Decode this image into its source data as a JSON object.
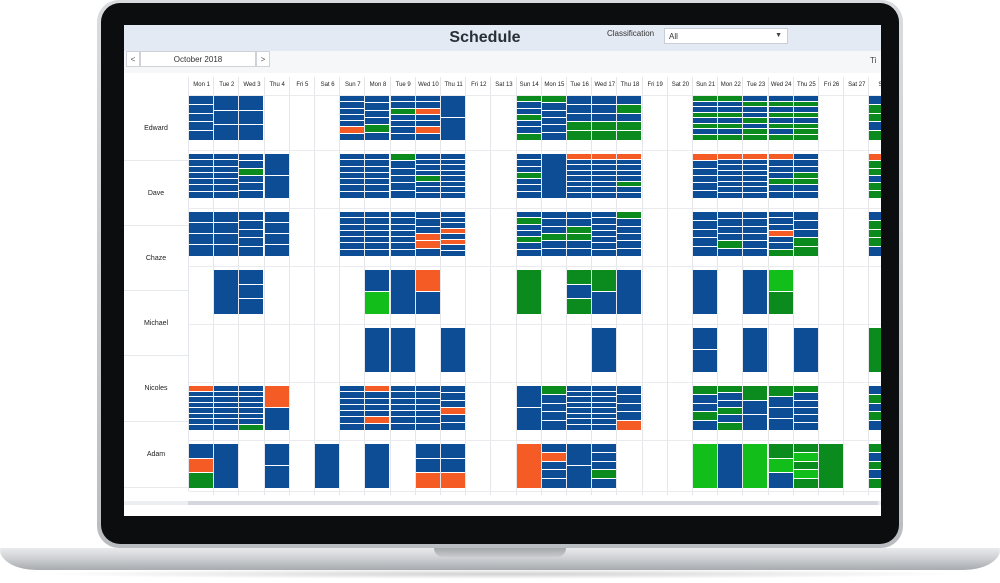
{
  "app": {
    "title": "Schedule"
  },
  "filter": {
    "label": "Classification",
    "value": "All"
  },
  "nav": {
    "prev": "<",
    "next": ">",
    "month": "October 2018",
    "cut_label": "Ti"
  },
  "colors": {
    "blue": "#0d4d95",
    "green": "#0b8a1e",
    "lime": "#12bf1a",
    "orange": "#f55b25",
    "grid": "#e4e6ea"
  },
  "days": [
    "Mon 1",
    "Tue 2",
    "Wed 3",
    "Thu 4",
    "Fri 5",
    "Sat 6",
    "Sun 7",
    "Mon 8",
    "Tue 9",
    "Wed 10",
    "Thu 11",
    "Fri 12",
    "Sat 13",
    "Sun 14",
    "Mon 15",
    "Tue 16",
    "Wed 17",
    "Thu 18",
    "Fri 19",
    "Sat 20",
    "Sun 21",
    "Mon 22",
    "Tue 23",
    "Wed 24",
    "Thu 25",
    "Fri 26",
    "Sat 27",
    "Su"
  ],
  "people": [
    "Edward",
    "Dave",
    "Chaze",
    "Michael",
    "Nicoles",
    "Adam"
  ],
  "blocks": [
    {
      "r": 0,
      "d": 0,
      "s": [
        "b",
        "b",
        "b",
        "b",
        "b"
      ]
    },
    {
      "r": 0,
      "d": 1,
      "s": [
        "b",
        "b",
        "b"
      ]
    },
    {
      "r": 0,
      "d": 2,
      "s": [
        "b",
        "b",
        "b"
      ]
    },
    {
      "r": 0,
      "d": 6,
      "s": [
        "b",
        "b",
        "b",
        "b",
        "b",
        "o",
        "b"
      ]
    },
    {
      "r": 0,
      "d": 7,
      "s": [
        "b",
        "b",
        "b",
        "b",
        "g",
        "b"
      ]
    },
    {
      "r": 0,
      "d": 8,
      "s": [
        "b",
        "b",
        "g",
        "b",
        "b",
        "b",
        "b"
      ]
    },
    {
      "r": 0,
      "d": 9,
      "s": [
        "b",
        "b",
        "o",
        "b",
        "b",
        "o",
        "b"
      ]
    },
    {
      "r": 0,
      "d": 10,
      "s": [
        "b",
        "b"
      ]
    },
    {
      "r": 0,
      "d": 13,
      "s": [
        "g",
        "b",
        "b",
        "g",
        "b",
        "b",
        "g"
      ]
    },
    {
      "r": 0,
      "d": 14,
      "s": [
        "g",
        "b",
        "b",
        "b",
        "b",
        "b"
      ]
    },
    {
      "r": 0,
      "d": 15,
      "s": [
        "b",
        "b",
        "b",
        "g",
        "g"
      ]
    },
    {
      "r": 0,
      "d": 16,
      "s": [
        "b",
        "b",
        "b",
        "g",
        "g"
      ]
    },
    {
      "r": 0,
      "d": 17,
      "s": [
        "b",
        "g",
        "b",
        "g",
        "g"
      ]
    },
    {
      "r": 0,
      "d": 20,
      "s": [
        "g",
        "b",
        "b",
        "g",
        "b",
        "g",
        "b",
        "g"
      ]
    },
    {
      "r": 0,
      "d": 21,
      "s": [
        "g",
        "b",
        "b",
        "g",
        "b",
        "g",
        "b",
        "g"
      ]
    },
    {
      "r": 0,
      "d": 22,
      "s": [
        "b",
        "g",
        "b",
        "b",
        "g",
        "b",
        "g",
        "g"
      ]
    },
    {
      "r": 0,
      "d": 23,
      "s": [
        "b",
        "g",
        "b",
        "g",
        "b",
        "g",
        "b",
        "g"
      ]
    },
    {
      "r": 0,
      "d": 24,
      "s": [
        "b",
        "g",
        "b",
        "g",
        "b",
        "g",
        "g",
        "g"
      ]
    },
    {
      "r": 0,
      "d": 27,
      "s": [
        "b",
        "g",
        "g",
        "b",
        "g"
      ]
    },
    {
      "r": 1,
      "d": 0,
      "s": [
        "b",
        "b",
        "b",
        "b",
        "b",
        "b",
        "b"
      ]
    },
    {
      "r": 1,
      "d": 1,
      "s": [
        "b",
        "b",
        "b",
        "b",
        "b",
        "b",
        "b"
      ]
    },
    {
      "r": 1,
      "d": 2,
      "s": [
        "b",
        "b",
        "g",
        "b",
        "b",
        "b"
      ]
    },
    {
      "r": 1,
      "d": 3,
      "s": [
        "b",
        "b"
      ]
    },
    {
      "r": 1,
      "d": 6,
      "s": [
        "b",
        "b",
        "b",
        "b",
        "b",
        "b",
        "b"
      ]
    },
    {
      "r": 1,
      "d": 7,
      "s": [
        "b",
        "b",
        "b",
        "b",
        "b",
        "b",
        "b"
      ]
    },
    {
      "r": 1,
      "d": 8,
      "s": [
        "g",
        "b",
        "b",
        "b",
        "b",
        "b"
      ]
    },
    {
      "r": 1,
      "d": 9,
      "s": [
        "b",
        "b",
        "b",
        "b",
        "g",
        "b",
        "b",
        "b"
      ]
    },
    {
      "r": 1,
      "d": 10,
      "s": [
        "b",
        "b",
        "b",
        "b",
        "b",
        "b",
        "b",
        "b"
      ]
    },
    {
      "r": 1,
      "d": 13,
      "s": [
        "b",
        "b",
        "b",
        "g",
        "b",
        "b",
        "b"
      ]
    },
    {
      "r": 1,
      "d": 14,
      "s": [
        "b"
      ]
    },
    {
      "r": 1,
      "d": 15,
      "s": [
        "o",
        "b",
        "b",
        "b",
        "b",
        "b",
        "b",
        "b"
      ]
    },
    {
      "r": 1,
      "d": 16,
      "s": [
        "o",
        "b",
        "b",
        "b",
        "b",
        "b",
        "b",
        "b"
      ]
    },
    {
      "r": 1,
      "d": 17,
      "s": [
        "o",
        "b",
        "b",
        "b",
        "b",
        "g",
        "b",
        "b"
      ]
    },
    {
      "r": 1,
      "d": 20,
      "s": [
        "o",
        "b",
        "b",
        "b",
        "b",
        "b"
      ]
    },
    {
      "r": 1,
      "d": 21,
      "s": [
        "o",
        "b",
        "b",
        "b",
        "b",
        "b",
        "b",
        "b"
      ]
    },
    {
      "r": 1,
      "d": 22,
      "s": [
        "o",
        "b",
        "b",
        "b",
        "b",
        "b",
        "b",
        "b"
      ]
    },
    {
      "r": 1,
      "d": 23,
      "s": [
        "o",
        "b",
        "b",
        "b",
        "g",
        "b",
        "b"
      ]
    },
    {
      "r": 1,
      "d": 24,
      "s": [
        "b",
        "b",
        "b",
        "g",
        "g",
        "b",
        "b"
      ]
    },
    {
      "r": 1,
      "d": 27,
      "s": [
        "o",
        "g",
        "g",
        "b",
        "g",
        "g"
      ]
    },
    {
      "r": 2,
      "d": 0,
      "s": [
        "b",
        "b",
        "b",
        "b"
      ]
    },
    {
      "r": 2,
      "d": 1,
      "s": [
        "b",
        "b",
        "b",
        "b"
      ]
    },
    {
      "r": 2,
      "d": 2,
      "s": [
        "b",
        "b",
        "b",
        "b",
        "b"
      ]
    },
    {
      "r": 2,
      "d": 3,
      "s": [
        "b",
        "b",
        "b",
        "b"
      ]
    },
    {
      "r": 2,
      "d": 6,
      "s": [
        "b",
        "b",
        "b",
        "b",
        "b",
        "b",
        "b"
      ]
    },
    {
      "r": 2,
      "d": 7,
      "s": [
        "b",
        "b",
        "b",
        "b",
        "b",
        "b",
        "b"
      ]
    },
    {
      "r": 2,
      "d": 8,
      "s": [
        "b",
        "b",
        "b",
        "b",
        "b",
        "b",
        "b"
      ]
    },
    {
      "r": 2,
      "d": 9,
      "s": [
        "b",
        "b",
        "b",
        "o",
        "o",
        "b"
      ]
    },
    {
      "r": 2,
      "d": 10,
      "s": [
        "b",
        "b",
        "b",
        "o",
        "b",
        "o",
        "b",
        "b"
      ]
    },
    {
      "r": 2,
      "d": 13,
      "s": [
        "b",
        "g",
        "b",
        "b",
        "g",
        "b",
        "b"
      ]
    },
    {
      "r": 2,
      "d": 14,
      "s": [
        "b",
        "b",
        "b",
        "g",
        "b",
        "b"
      ]
    },
    {
      "r": 2,
      "d": 15,
      "s": [
        "b",
        "b",
        "g",
        "g",
        "b",
        "b"
      ]
    },
    {
      "r": 2,
      "d": 16,
      "s": [
        "b",
        "b",
        "b",
        "b",
        "b",
        "b",
        "b"
      ]
    },
    {
      "r": 2,
      "d": 17,
      "s": [
        "g",
        "b",
        "b",
        "b",
        "b",
        "b"
      ]
    },
    {
      "r": 2,
      "d": 20,
      "s": [
        "b",
        "b",
        "b",
        "b",
        "b"
      ]
    },
    {
      "r": 2,
      "d": 21,
      "s": [
        "b",
        "b",
        "b",
        "b",
        "g",
        "b"
      ]
    },
    {
      "r": 2,
      "d": 22,
      "s": [
        "b",
        "b",
        "b",
        "b",
        "b",
        "b"
      ]
    },
    {
      "r": 2,
      "d": 23,
      "s": [
        "b",
        "b",
        "b",
        "o",
        "b",
        "b",
        "g"
      ]
    },
    {
      "r": 2,
      "d": 24,
      "s": [
        "b",
        "b",
        "b",
        "g",
        "g"
      ]
    },
    {
      "r": 2,
      "d": 27,
      "s": [
        "b",
        "g",
        "g",
        "g",
        "b"
      ]
    },
    {
      "r": 3,
      "d": 1,
      "s": [
        "b"
      ]
    },
    {
      "r": 3,
      "d": 2,
      "s": [
        "b",
        "b",
        "b"
      ]
    },
    {
      "r": 3,
      "d": 7,
      "s": [
        "b",
        "l"
      ]
    },
    {
      "r": 3,
      "d": 8,
      "s": [
        "b"
      ]
    },
    {
      "r": 3,
      "d": 9,
      "s": [
        "o",
        "b"
      ]
    },
    {
      "r": 3,
      "d": 13,
      "s": [
        "g"
      ]
    },
    {
      "r": 3,
      "d": 15,
      "s": [
        "g",
        "b",
        "g"
      ]
    },
    {
      "r": 3,
      "d": 16,
      "s": [
        "g",
        "b"
      ]
    },
    {
      "r": 3,
      "d": 17,
      "s": [
        "b"
      ]
    },
    {
      "r": 3,
      "d": 20,
      "s": [
        "b"
      ]
    },
    {
      "r": 3,
      "d": 22,
      "s": [
        "b"
      ]
    },
    {
      "r": 3,
      "d": 23,
      "s": [
        "l",
        "g"
      ]
    },
    {
      "r": 4,
      "d": 7,
      "s": [
        "b"
      ]
    },
    {
      "r": 4,
      "d": 8,
      "s": [
        "b"
      ]
    },
    {
      "r": 4,
      "d": 10,
      "s": [
        "b"
      ]
    },
    {
      "r": 4,
      "d": 16,
      "s": [
        "b"
      ]
    },
    {
      "r": 4,
      "d": 20,
      "s": [
        "b",
        "b"
      ]
    },
    {
      "r": 4,
      "d": 22,
      "s": [
        "b"
      ]
    },
    {
      "r": 4,
      "d": 24,
      "s": [
        "b"
      ]
    },
    {
      "r": 4,
      "d": 27,
      "s": [
        "g"
      ]
    },
    {
      "r": 5,
      "d": 0,
      "s": [
        "o",
        "b",
        "b",
        "b",
        "b",
        "b",
        "b",
        "b"
      ]
    },
    {
      "r": 5,
      "d": 1,
      "s": [
        "b",
        "b",
        "b",
        "b",
        "b",
        "b",
        "b",
        "b"
      ]
    },
    {
      "r": 5,
      "d": 2,
      "s": [
        "b",
        "b",
        "b",
        "b",
        "b",
        "b",
        "b",
        "g"
      ]
    },
    {
      "r": 5,
      "d": 3,
      "s": [
        "o",
        "b"
      ]
    },
    {
      "r": 5,
      "d": 6,
      "s": [
        "b",
        "b",
        "b",
        "b",
        "b",
        "b",
        "b"
      ]
    },
    {
      "r": 5,
      "d": 7,
      "s": [
        "o",
        "b",
        "b",
        "b",
        "b",
        "o",
        "b"
      ]
    },
    {
      "r": 5,
      "d": 8,
      "s": [
        "b",
        "b",
        "b",
        "b",
        "b",
        "b",
        "b"
      ]
    },
    {
      "r": 5,
      "d": 9,
      "s": [
        "b",
        "b",
        "b",
        "b",
        "b",
        "b",
        "b"
      ]
    },
    {
      "r": 5,
      "d": 10,
      "s": [
        "b",
        "b",
        "b",
        "o",
        "b",
        "b"
      ]
    },
    {
      "r": 5,
      "d": 13,
      "s": [
        "b",
        "b"
      ]
    },
    {
      "r": 5,
      "d": 14,
      "s": [
        "g",
        "b",
        "b",
        "b",
        "b"
      ]
    },
    {
      "r": 5,
      "d": 15,
      "s": [
        "b",
        "b",
        "b",
        "b",
        "b",
        "b",
        "b",
        "b"
      ]
    },
    {
      "r": 5,
      "d": 16,
      "s": [
        "b",
        "b",
        "b",
        "b",
        "b",
        "b",
        "b",
        "b"
      ]
    },
    {
      "r": 5,
      "d": 17,
      "s": [
        "b",
        "b",
        "b",
        "b",
        "o"
      ]
    },
    {
      "r": 5,
      "d": 20,
      "s": [
        "g",
        "b",
        "b",
        "g",
        "b"
      ]
    },
    {
      "r": 5,
      "d": 21,
      "s": [
        "g",
        "b",
        "b",
        "g",
        "b",
        "g"
      ]
    },
    {
      "r": 5,
      "d": 22,
      "s": [
        "g",
        "b",
        "b"
      ]
    },
    {
      "r": 5,
      "d": 23,
      "s": [
        "g",
        "b",
        "b",
        "b"
      ]
    },
    {
      "r": 5,
      "d": 24,
      "s": [
        "g",
        "b",
        "b",
        "b",
        "b",
        "b"
      ]
    },
    {
      "r": 5,
      "d": 27,
      "s": [
        "b",
        "g",
        "b",
        "g",
        "b"
      ]
    },
    {
      "r": 6,
      "d": 0,
      "s": [
        "b",
        "o",
        "g"
      ]
    },
    {
      "r": 6,
      "d": 1,
      "s": [
        "b"
      ]
    },
    {
      "r": 6,
      "d": 3,
      "s": [
        "b",
        "b"
      ]
    },
    {
      "r": 6,
      "d": 5,
      "s": [
        "b"
      ]
    },
    {
      "r": 6,
      "d": 7,
      "s": [
        "b"
      ]
    },
    {
      "r": 6,
      "d": 9,
      "s": [
        "b",
        "b",
        "o"
      ]
    },
    {
      "r": 6,
      "d": 10,
      "s": [
        "b",
        "b",
        "o"
      ]
    },
    {
      "r": 6,
      "d": 13,
      "s": [
        "o"
      ]
    },
    {
      "r": 6,
      "d": 14,
      "s": [
        "b",
        "o",
        "b",
        "b",
        "b"
      ]
    },
    {
      "r": 6,
      "d": 15,
      "s": [
        "b",
        "b"
      ]
    },
    {
      "r": 6,
      "d": 16,
      "s": [
        "b",
        "b",
        "b",
        "g",
        "b"
      ]
    },
    {
      "r": 6,
      "d": 20,
      "s": [
        "l"
      ]
    },
    {
      "r": 6,
      "d": 21,
      "s": [
        "b"
      ]
    },
    {
      "r": 6,
      "d": 22,
      "s": [
        "l"
      ]
    },
    {
      "r": 6,
      "d": 23,
      "s": [
        "g",
        "l",
        "b"
      ]
    },
    {
      "r": 6,
      "d": 24,
      "s": [
        "g",
        "l",
        "g",
        "l",
        "g"
      ]
    },
    {
      "r": 6,
      "d": 25,
      "s": [
        "g"
      ]
    },
    {
      "r": 6,
      "d": 27,
      "s": [
        "g",
        "b",
        "g",
        "b",
        "g"
      ]
    }
  ]
}
